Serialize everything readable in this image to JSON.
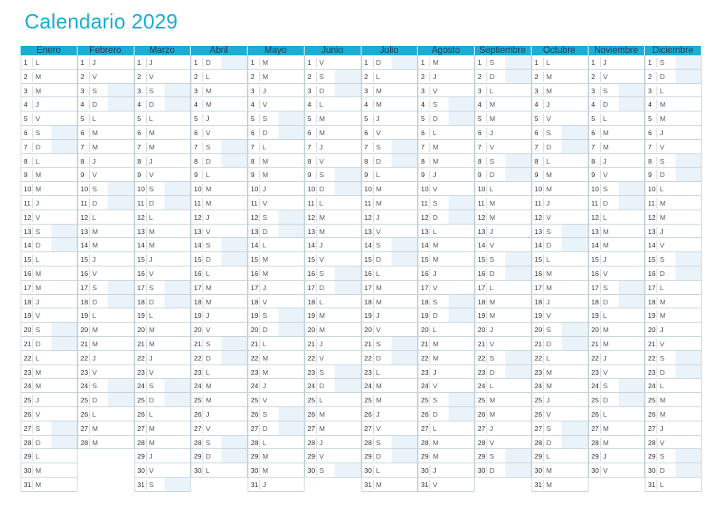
{
  "title": "Calendario 2029",
  "colors": {
    "accent": "#1aaed4",
    "weekend_shade": "#eaf3fa",
    "grid": "#c9d4da"
  },
  "months": [
    {
      "name": "Enero",
      "days": [
        "L",
        "M",
        "M",
        "J",
        "V",
        "S",
        "D",
        "L",
        "M",
        "M",
        "J",
        "V",
        "S",
        "D",
        "L",
        "M",
        "M",
        "J",
        "V",
        "S",
        "D",
        "L",
        "M",
        "M",
        "J",
        "V",
        "S",
        "D",
        "L",
        "M",
        "M"
      ]
    },
    {
      "name": "Febrero",
      "days": [
        "J",
        "V",
        "S",
        "D",
        "L",
        "M",
        "M",
        "J",
        "V",
        "S",
        "D",
        "L",
        "M",
        "M",
        "J",
        "V",
        "S",
        "D",
        "L",
        "M",
        "M",
        "J",
        "V",
        "S",
        "D",
        "L",
        "M",
        "M"
      ]
    },
    {
      "name": "Marzo",
      "days": [
        "J",
        "V",
        "S",
        "D",
        "L",
        "M",
        "M",
        "J",
        "V",
        "S",
        "D",
        "L",
        "M",
        "M",
        "J",
        "V",
        "S",
        "D",
        "L",
        "M",
        "M",
        "J",
        "V",
        "S",
        "D",
        "L",
        "M",
        "M",
        "J",
        "V",
        "S"
      ]
    },
    {
      "name": "Abril",
      "days": [
        "D",
        "L",
        "M",
        "M",
        "J",
        "V",
        "S",
        "D",
        "L",
        "M",
        "M",
        "J",
        "V",
        "S",
        "D",
        "L",
        "M",
        "M",
        "J",
        "V",
        "S",
        "D",
        "L",
        "M",
        "M",
        "J",
        "V",
        "S",
        "D",
        "L"
      ]
    },
    {
      "name": "Mayo",
      "days": [
        "M",
        "M",
        "J",
        "V",
        "S",
        "D",
        "L",
        "M",
        "M",
        "J",
        "V",
        "S",
        "D",
        "L",
        "M",
        "M",
        "J",
        "V",
        "S",
        "D",
        "L",
        "M",
        "M",
        "J",
        "V",
        "S",
        "D",
        "L",
        "M",
        "M",
        "J"
      ]
    },
    {
      "name": "Junio",
      "days": [
        "V",
        "S",
        "D",
        "L",
        "M",
        "M",
        "J",
        "V",
        "S",
        "D",
        "L",
        "M",
        "M",
        "J",
        "V",
        "S",
        "D",
        "L",
        "M",
        "M",
        "J",
        "V",
        "S",
        "D",
        "L",
        "M",
        "M",
        "J",
        "V",
        "S"
      ]
    },
    {
      "name": "Julio",
      "days": [
        "D",
        "L",
        "M",
        "M",
        "J",
        "V",
        "S",
        "D",
        "L",
        "M",
        "M",
        "J",
        "V",
        "S",
        "D",
        "L",
        "M",
        "M",
        "J",
        "V",
        "S",
        "D",
        "L",
        "M",
        "M",
        "J",
        "V",
        "S",
        "D",
        "L",
        "M"
      ]
    },
    {
      "name": "Agosto",
      "days": [
        "M",
        "J",
        "V",
        "S",
        "D",
        "L",
        "M",
        "M",
        "J",
        "V",
        "S",
        "D",
        "L",
        "M",
        "M",
        "J",
        "V",
        "S",
        "D",
        "L",
        "M",
        "M",
        "J",
        "V",
        "S",
        "D",
        "L",
        "M",
        "M",
        "J",
        "V"
      ]
    },
    {
      "name": "Septiembre",
      "days": [
        "S",
        "D",
        "L",
        "M",
        "M",
        "J",
        "V",
        "S",
        "D",
        "L",
        "M",
        "M",
        "J",
        "V",
        "S",
        "D",
        "L",
        "M",
        "M",
        "J",
        "V",
        "S",
        "D",
        "L",
        "M",
        "M",
        "J",
        "V",
        "S",
        "D"
      ]
    },
    {
      "name": "Octubre",
      "days": [
        "L",
        "M",
        "M",
        "J",
        "V",
        "S",
        "D",
        "L",
        "M",
        "M",
        "J",
        "V",
        "S",
        "D",
        "L",
        "M",
        "M",
        "J",
        "V",
        "S",
        "D",
        "L",
        "M",
        "M",
        "J",
        "V",
        "S",
        "D",
        "L",
        "M",
        "M"
      ]
    },
    {
      "name": "Noviembre",
      "days": [
        "J",
        "V",
        "S",
        "D",
        "L",
        "M",
        "M",
        "J",
        "V",
        "S",
        "D",
        "L",
        "M",
        "M",
        "J",
        "V",
        "S",
        "D",
        "L",
        "M",
        "M",
        "J",
        "V",
        "S",
        "D",
        "L",
        "M",
        "M",
        "J",
        "V"
      ]
    },
    {
      "name": "Diciembre",
      "days": [
        "S",
        "D",
        "L",
        "M",
        "M",
        "J",
        "V",
        "S",
        "D",
        "L",
        "M",
        "M",
        "J",
        "V",
        "S",
        "D",
        "L",
        "M",
        "M",
        "J",
        "V",
        "S",
        "D",
        "L",
        "M",
        "M",
        "J",
        "V",
        "S",
        "D",
        "L"
      ]
    }
  ]
}
